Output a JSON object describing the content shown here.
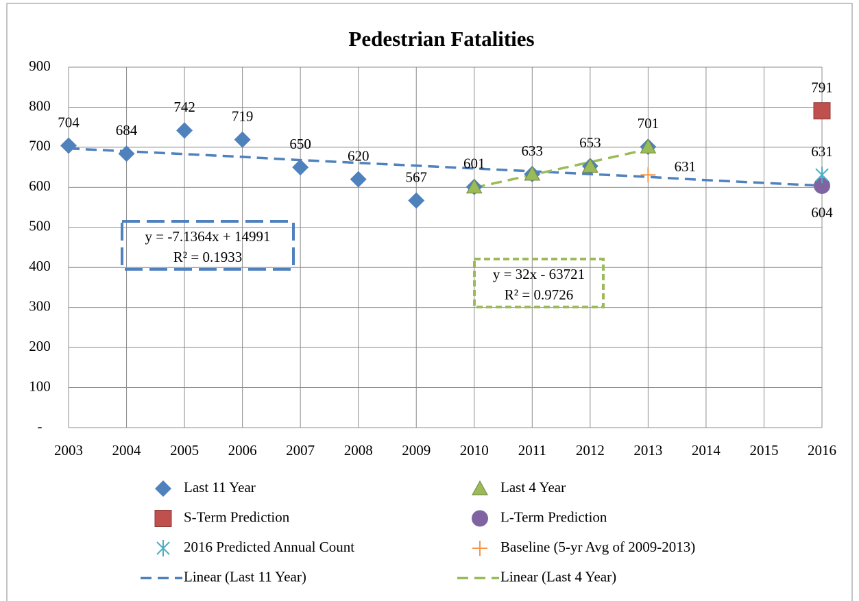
{
  "chart_data": {
    "type": "line",
    "title": "Pedestrian Fatalities",
    "categories": [
      "2003",
      "2004",
      "2005",
      "2006",
      "2007",
      "2008",
      "2009",
      "2010",
      "2011",
      "2012",
      "2013",
      "2014",
      "2015",
      "2016"
    ],
    "ylim": [
      0,
      900
    ],
    "yticks": [
      {
        "value": 0,
        "label": "-"
      },
      100,
      200,
      300,
      400,
      500,
      600,
      700,
      800,
      900
    ],
    "grid": true,
    "series": [
      {
        "name": "Last 11 Year",
        "color": "#4f81bd",
        "marker": "diamond",
        "label_position": "above",
        "values": [
          704,
          684,
          742,
          719,
          650,
          620,
          567,
          601,
          633,
          653,
          701,
          null,
          null,
          null
        ]
      },
      {
        "name": "Last 4 Year",
        "color": "#9bbb59",
        "marker": "triangle",
        "values": [
          null,
          null,
          null,
          null,
          null,
          null,
          null,
          601,
          633,
          653,
          701,
          null,
          null,
          null
        ]
      },
      {
        "name": "S-Term Prediction",
        "color": "#c0504d",
        "marker": "square",
        "label_position": "above",
        "values": [
          null,
          null,
          null,
          null,
          null,
          null,
          null,
          null,
          null,
          null,
          null,
          null,
          null,
          791
        ]
      },
      {
        "name": "L-Term Prediction",
        "color": "#8064a2",
        "marker": "circle",
        "label_position": "below",
        "values": [
          null,
          null,
          null,
          null,
          null,
          null,
          null,
          null,
          null,
          null,
          null,
          null,
          null,
          604
        ]
      },
      {
        "name": "2016 Predicted Annual Count",
        "color": "#4bacc6",
        "marker": "asterisk",
        "label_position": "above",
        "values": [
          null,
          null,
          null,
          null,
          null,
          null,
          null,
          null,
          null,
          null,
          null,
          null,
          null,
          631
        ]
      },
      {
        "name": "Baseline (5-yr Avg of 2009-2013)",
        "color": "#f79646",
        "marker": "plus",
        "label_position": "right",
        "values": [
          null,
          null,
          null,
          null,
          null,
          null,
          null,
          null,
          null,
          null,
          631,
          null,
          null,
          null
        ]
      },
      {
        "name": "Linear (Last 11 Year)",
        "color": "#4f81bd",
        "marker": "none",
        "style": "dashed",
        "values": [
          697,
          690,
          683,
          676,
          668,
          661,
          654,
          647,
          640,
          633,
          626,
          618,
          611,
          604
        ]
      },
      {
        "name": "Linear (Last 4 Year)",
        "color": "#9bbb59",
        "marker": "none",
        "style": "dashed",
        "values": [
          null,
          null,
          null,
          null,
          null,
          null,
          null,
          599,
          631,
          663,
          695,
          null,
          null,
          null
        ]
      }
    ],
    "annotations": [
      {
        "lines": [
          "y = -7.1364x + 14991",
          "R² = 0.1933"
        ],
        "color": "#4f81bd"
      },
      {
        "lines": [
          "y = 32x - 63721",
          "R² = 0.9726"
        ],
        "color": "#9bbb59"
      }
    ]
  }
}
